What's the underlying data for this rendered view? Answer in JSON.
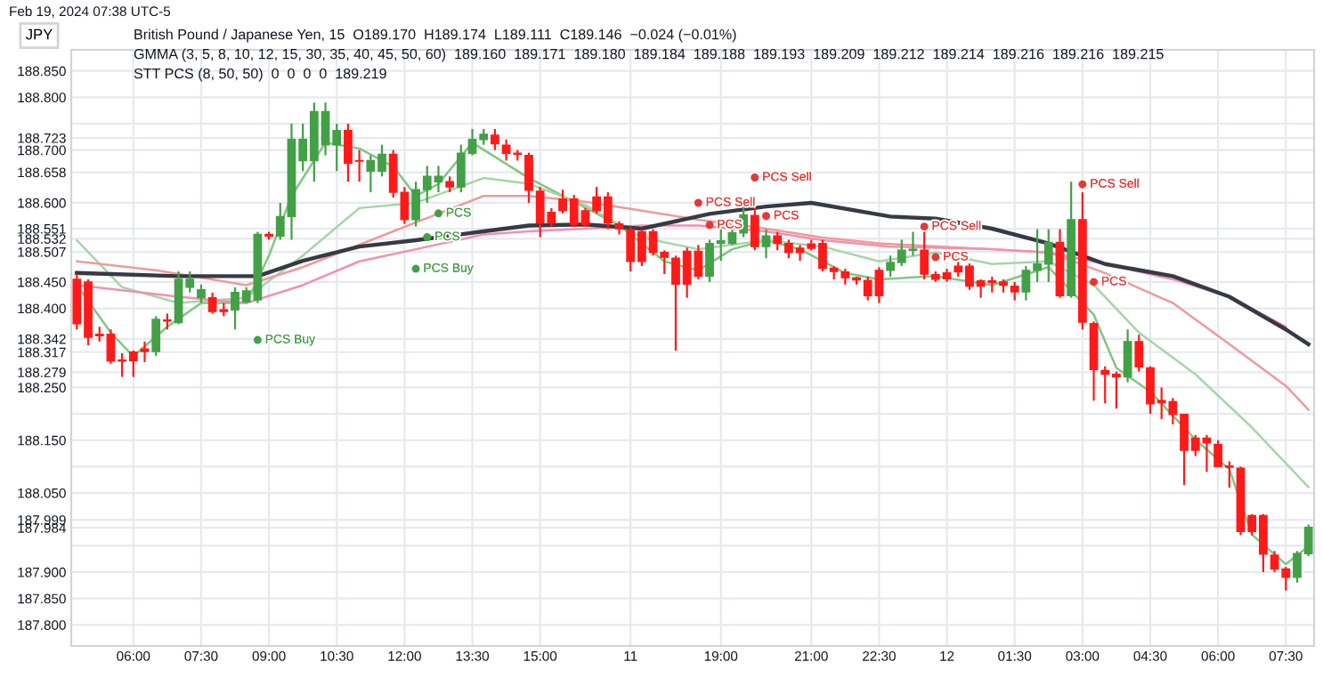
{
  "chart_data": {
    "type": "candlestick",
    "title": "British Pound / Japanese Yen, 15  O189.170  H189.174  L189.111  C189.146  −0.024 (−0.01%)",
    "subtitle": "GMMA (3, 5, 8, 10, 12, 15, 30, 35, 40, 45, 50, 60)  189.160  189.171  189.180  189.184  189.188  189.193  189.209  189.212  189.214  189.216  189.216  189.215",
    "ylabel": "JPY",
    "annotations": [
      "Feb 19, 2024 07:38 UTC-5",
      "STT PCS (8, 50, 50)  0  0  0  0  189.219"
    ],
    "categories": [
      null,
      null,
      null,
      null,
      null,
      "06:00",
      null,
      null,
      null,
      null,
      null,
      "07:30",
      null,
      null,
      null,
      null,
      null,
      "09:00",
      null,
      null,
      null,
      null,
      null,
      "10:30",
      null,
      null,
      null,
      null,
      null,
      "12:00",
      null,
      null,
      null,
      null,
      null,
      "13:30",
      null,
      null,
      null,
      null,
      null,
      "15:00",
      null,
      null,
      null,
      null,
      null,
      null,
      null,
      "11",
      null,
      null,
      null,
      null,
      null,
      null,
      null,
      "19:00",
      null,
      null,
      null,
      null,
      null,
      null,
      null,
      "21:00",
      null,
      null,
      null,
      null,
      null,
      "22:30",
      null,
      null,
      null,
      null,
      null,
      "12",
      null,
      null,
      null,
      null,
      null,
      "01:30",
      null,
      null,
      null,
      null,
      null,
      "03:00",
      null,
      null,
      null,
      null,
      null,
      "04:30",
      null,
      null,
      null,
      null,
      null,
      "06:00",
      null,
      null,
      null,
      null,
      null,
      "07:30",
      null,
      null
    ],
    "ohlc": [
      [
        188.455,
        188.465,
        188.36,
        188.371
      ],
      [
        188.45,
        188.455,
        188.33,
        188.345
      ],
      [
        188.351,
        188.365,
        188.337,
        188.348
      ],
      [
        188.351,
        188.36,
        188.295,
        188.3
      ],
      [
        188.302,
        188.315,
        188.27,
        188.3
      ],
      [
        188.317,
        188.32,
        188.27,
        188.301
      ],
      [
        188.323,
        188.337,
        188.298,
        188.318
      ],
      [
        188.318,
        188.385,
        188.31,
        188.379
      ],
      [
        188.378,
        188.39,
        188.36,
        188.376
      ],
      [
        188.373,
        188.47,
        188.37,
        188.455
      ],
      [
        188.44,
        188.47,
        188.43,
        188.455
      ],
      [
        188.42,
        188.445,
        188.41,
        188.435
      ],
      [
        188.42,
        188.43,
        188.39,
        188.394
      ],
      [
        188.397,
        188.41,
        188.385,
        188.394
      ],
      [
        188.397,
        188.44,
        188.36,
        188.43
      ],
      [
        188.412,
        188.44,
        188.41,
        188.433
      ],
      [
        188.416,
        188.545,
        188.41,
        188.54
      ],
      [
        188.54,
        188.545,
        188.53,
        188.537
      ],
      [
        188.537,
        188.6,
        188.53,
        188.574
      ],
      [
        188.574,
        188.75,
        188.53,
        188.72
      ],
      [
        188.68,
        188.75,
        188.66,
        188.72
      ],
      [
        188.68,
        188.79,
        188.64,
        188.773
      ],
      [
        188.71,
        188.79,
        188.69,
        188.773
      ],
      [
        188.71,
        188.75,
        188.66,
        188.737
      ],
      [
        188.737,
        188.75,
        188.64,
        188.675
      ],
      [
        188.68,
        188.7,
        188.64,
        188.679
      ],
      [
        188.66,
        188.69,
        188.62,
        188.68
      ],
      [
        188.66,
        188.71,
        188.65,
        188.692
      ],
      [
        188.692,
        188.7,
        188.61,
        188.62
      ],
      [
        188.62,
        188.63,
        188.56,
        188.568
      ],
      [
        188.568,
        188.64,
        188.555,
        188.625
      ],
      [
        188.625,
        188.67,
        188.6,
        188.65
      ],
      [
        188.64,
        188.67,
        188.62,
        188.65
      ],
      [
        188.64,
        188.65,
        188.62,
        188.63
      ],
      [
        188.63,
        188.71,
        188.62,
        188.694
      ],
      [
        188.694,
        188.74,
        188.69,
        188.72
      ],
      [
        188.72,
        188.74,
        188.71,
        188.73
      ],
      [
        188.728,
        188.74,
        188.7,
        188.712
      ],
      [
        188.709,
        188.72,
        188.68,
        188.694
      ],
      [
        188.694,
        188.7,
        188.68,
        188.692
      ],
      [
        188.69,
        188.695,
        188.6,
        188.624
      ],
      [
        188.622,
        188.63,
        188.535,
        188.562
      ],
      [
        188.582,
        188.59,
        188.555,
        188.562
      ],
      [
        188.607,
        188.625,
        188.58,
        188.585
      ],
      [
        188.607,
        188.615,
        188.555,
        188.559
      ],
      [
        188.585,
        188.59,
        188.555,
        188.559
      ],
      [
        188.611,
        188.63,
        188.58,
        188.585
      ],
      [
        188.611,
        188.62,
        188.55,
        188.562
      ],
      [
        188.56,
        188.565,
        188.54,
        188.551
      ],
      [
        188.549,
        188.555,
        188.47,
        188.489
      ],
      [
        188.545,
        188.55,
        188.48,
        188.489
      ],
      [
        188.545,
        188.55,
        188.5,
        188.506
      ],
      [
        188.506,
        188.51,
        188.465,
        188.497
      ],
      [
        188.495,
        188.5,
        188.32,
        188.446
      ],
      [
        188.508,
        188.515,
        188.42,
        188.446
      ],
      [
        188.508,
        188.52,
        188.455,
        188.461
      ],
      [
        188.461,
        188.53,
        188.45,
        188.523
      ],
      [
        188.523,
        188.55,
        188.49,
        188.528
      ],
      [
        188.523,
        188.56,
        188.52,
        188.543
      ],
      [
        188.543,
        188.6,
        188.535,
        188.577
      ],
      [
        188.576,
        188.6,
        188.51,
        188.517
      ],
      [
        188.517,
        188.55,
        188.495,
        188.537
      ],
      [
        188.537,
        188.545,
        188.51,
        188.523
      ],
      [
        188.523,
        188.53,
        188.495,
        188.506
      ],
      [
        188.514,
        188.52,
        188.49,
        188.506
      ],
      [
        188.522,
        188.53,
        188.51,
        188.514
      ],
      [
        188.523,
        188.53,
        188.47,
        188.476
      ],
      [
        188.476,
        188.48,
        188.455,
        188.47
      ],
      [
        188.469,
        188.475,
        188.445,
        188.458
      ],
      [
        188.458,
        188.46,
        188.445,
        188.454
      ],
      [
        188.453,
        188.46,
        188.415,
        188.424
      ],
      [
        188.472,
        188.478,
        188.41,
        188.424
      ],
      [
        188.472,
        188.5,
        188.46,
        188.487
      ],
      [
        188.487,
        188.53,
        188.48,
        188.51
      ],
      [
        188.51,
        188.545,
        188.5,
        188.512
      ],
      [
        188.51,
        188.545,
        188.455,
        188.465
      ],
      [
        188.464,
        188.47,
        188.45,
        188.455
      ],
      [
        188.467,
        188.475,
        188.45,
        188.456
      ],
      [
        188.48,
        188.49,
        188.46,
        188.469
      ],
      [
        188.48,
        188.485,
        188.435,
        188.442
      ],
      [
        188.452,
        188.455,
        188.42,
        188.442
      ],
      [
        188.452,
        188.46,
        188.43,
        188.449
      ],
      [
        188.45,
        188.455,
        188.43,
        188.444
      ],
      [
        188.442,
        188.45,
        188.415,
        188.431
      ],
      [
        188.431,
        188.48,
        188.415,
        188.472
      ],
      [
        188.472,
        188.55,
        188.45,
        188.484
      ],
      [
        188.484,
        188.55,
        188.45,
        188.525
      ],
      [
        188.525,
        188.55,
        188.42,
        188.424
      ],
      [
        188.424,
        188.64,
        188.42,
        188.568
      ],
      [
        188.568,
        188.62,
        188.36,
        188.374
      ],
      [
        188.371,
        188.375,
        188.225,
        188.284
      ],
      [
        188.282,
        188.29,
        188.22,
        188.275
      ],
      [
        188.275,
        188.28,
        188.21,
        188.27
      ],
      [
        188.27,
        188.36,
        188.26,
        188.337
      ],
      [
        188.337,
        188.35,
        188.28,
        188.289
      ],
      [
        188.287,
        188.29,
        188.2,
        188.219
      ],
      [
        188.225,
        188.25,
        188.19,
        188.221
      ],
      [
        188.223,
        188.23,
        188.18,
        188.199
      ],
      [
        188.199,
        188.2,
        188.065,
        188.131
      ],
      [
        188.154,
        188.16,
        188.12,
        188.131
      ],
      [
        188.154,
        188.16,
        188.09,
        188.145
      ],
      [
        188.142,
        188.15,
        188.1,
        188.1
      ],
      [
        188.101,
        188.11,
        188.06,
        188.099
      ],
      [
        188.097,
        188.1,
        187.97,
        187.977
      ],
      [
        188.007,
        188.01,
        187.97,
        187.977
      ],
      [
        188.007,
        188.01,
        187.9,
        187.934
      ],
      [
        187.932,
        187.94,
        187.9,
        187.906
      ],
      [
        187.906,
        187.91,
        187.865,
        187.89
      ],
      [
        187.89,
        187.94,
        187.88,
        187.935
      ],
      [
        187.935,
        187.99,
        187.93,
        187.985
      ]
    ],
    "series": [
      {
        "type": "line",
        "color": "#81c784",
        "values": [
          188.444,
          null,
          null,
          188.354,
          null,
          188.309,
          null,
          null,
          188.365,
          null,
          null,
          188.41,
          null,
          null,
          null,
          188.41,
          null,
          188.5,
          null,
          188.613,
          null,
          null,
          188.714,
          null,
          null,
          188.703,
          null,
          null,
          188.669,
          null,
          188.613,
          null,
          188.636,
          null,
          null,
          188.714,
          null,
          null,
          null,
          null,
          188.647,
          null,
          null,
          null,
          null,
          188.591,
          null,
          null,
          188.557,
          null,
          null,
          null,
          188.489,
          null,
          null,
          188.472,
          null,
          null,
          188.512,
          null,
          null,
          188.529,
          null,
          null,
          188.512,
          null,
          null,
          null,
          188.467,
          null,
          null,
          188.455,
          null,
          null,
          null,
          null,
          188.461,
          null,
          null,
          null,
          null,
          188.444,
          null,
          null,
          null,
          null,
          188.478,
          null,
          null,
          null,
          188.388,
          null,
          188.287,
          null,
          null,
          188.242,
          null,
          null,
          null,
          188.151,
          null,
          null,
          188.095,
          null,
          187.971,
          null,
          null,
          187.915,
          null,
          187.949
        ]
      },
      {
        "type": "line",
        "color": "#a5d6a7",
        "values": [
          188.529,
          null,
          null,
          null,
          188.44,
          null,
          null,
          null,
          null,
          188.41,
          null,
          null,
          null,
          null,
          null,
          188.42,
          null,
          null,
          null,
          null,
          188.5,
          null,
          null,
          null,
          null,
          188.59,
          null,
          null,
          null,
          null,
          188.6,
          null,
          null,
          null,
          null,
          null,
          188.647,
          null,
          null,
          null,
          188.636,
          null,
          null,
          null,
          null,
          188.596,
          null,
          null,
          null,
          null,
          188.534,
          null,
          null,
          null,
          null,
          188.512,
          null,
          null,
          null,
          null,
          null,
          188.529,
          null,
          null,
          null,
          null,
          188.517,
          null,
          null,
          null,
          null,
          188.489,
          null,
          null,
          null,
          null,
          188.506,
          null,
          null,
          null,
          null,
          188.484,
          null,
          null,
          null,
          null,
          188.489,
          null,
          null,
          null,
          188.444,
          null,
          null,
          null,
          188.354,
          null,
          null,
          null,
          null,
          188.275,
          null,
          null,
          null,
          null,
          188.174,
          null,
          null,
          null,
          null,
          188.061
        ]
      },
      {
        "type": "line",
        "color": "#ef9a9a",
        "values": [
          188.489,
          null,
          null,
          null,
          null,
          null,
          null,
          188.472,
          null,
          null,
          null,
          null,
          null,
          null,
          null,
          188.444,
          null,
          null,
          null,
          null,
          188.478,
          null,
          null,
          null,
          null,
          null,
          null,
          null,
          188.546,
          null,
          null,
          null,
          null,
          null,
          null,
          null,
          188.613,
          null,
          null,
          null,
          188.613,
          null,
          null,
          null,
          null,
          188.602,
          null,
          null,
          null,
          null,
          188.585,
          null,
          null,
          null,
          null,
          188.568,
          null,
          null,
          null,
          null,
          null,
          188.551,
          null,
          null,
          null,
          null,
          188.534,
          null,
          null,
          null,
          null,
          188.523,
          null,
          null,
          null,
          null,
          null,
          null,
          null,
          null,
          null,
          188.512,
          null,
          null,
          null,
          null,
          188.506,
          null,
          null,
          null,
          null,
          188.467,
          null,
          null,
          null,
          null,
          null,
          188.41,
          null,
          null,
          null,
          null,
          188.332,
          null,
          null,
          null,
          null,
          188.253,
          null,
          188.208
        ]
      },
      {
        "type": "line",
        "color": "#f48fb1",
        "values": [
          188.444,
          null,
          null,
          null,
          null,
          null,
          null,
          null,
          null,
          188.422,
          null,
          null,
          null,
          null,
          null,
          188.41,
          null,
          null,
          null,
          null,
          188.444,
          null,
          null,
          null,
          null,
          188.489,
          null,
          null,
          null,
          null,
          188.512,
          null,
          null,
          null,
          null,
          null,
          188.54,
          null,
          null,
          null,
          188.546,
          null,
          null,
          null,
          null,
          188.551,
          null,
          null,
          null,
          null,
          188.557,
          null,
          null,
          null,
          null,
          188.557,
          null,
          null,
          null,
          null,
          null,
          188.546,
          null,
          null,
          null,
          null,
          188.529,
          null,
          null,
          null,
          null,
          null,
          188.517,
          null,
          null,
          null,
          null,
          null,
          null,
          null,
          null,
          188.512,
          null,
          null,
          null,
          null,
          188.506,
          null,
          null,
          null,
          null,
          188.484,
          null,
          null,
          null,
          null,
          null,
          188.455,
          null,
          null,
          null,
          null,
          188.422,
          null,
          null,
          null,
          null,
          188.365,
          null,
          null
        ]
      },
      {
        "type": "line",
        "color": "#363a45",
        "values": [
          188.467,
          null,
          null,
          null,
          null,
          null,
          null,
          null,
          null,
          188.461,
          null,
          null,
          null,
          null,
          null,
          null,
          188.461,
          null,
          null,
          null,
          188.49,
          null,
          null,
          null,
          null,
          188.517,
          null,
          null,
          null,
          null,
          188.529,
          null,
          null,
          null,
          null,
          null,
          188.546,
          null,
          null,
          null,
          188.557,
          null,
          null,
          null,
          null,
          188.559,
          null,
          null,
          null,
          null,
          188.551,
          null,
          null,
          null,
          null,
          null,
          188.579,
          null,
          null,
          null,
          null,
          188.593,
          null,
          null,
          null,
          188.6,
          null,
          null,
          null,
          null,
          null,
          null,
          188.574,
          null,
          null,
          null,
          188.57,
          null,
          null,
          null,
          null,
          188.551,
          null,
          null,
          null,
          null,
          188.523,
          null,
          null,
          null,
          null,
          188.484,
          null,
          null,
          null,
          null,
          null,
          188.461,
          null,
          null,
          null,
          null,
          188.422,
          null,
          null,
          null,
          null,
          188.36,
          null,
          188.332
        ]
      },
      {
        "type": "scatter",
        "color": "#43a047",
        "marker": "circle",
        "values": [
          null,
          null,
          null,
          null,
          null,
          null,
          null,
          null,
          null,
          null,
          null,
          null,
          null,
          null,
          null,
          null,
          188.34,
          null,
          null,
          null,
          null,
          null,
          null,
          null,
          null,
          null,
          null,
          null,
          null,
          null,
          188.475,
          188.535,
          188.58,
          null,
          null,
          null,
          null,
          null,
          null,
          null,
          null,
          null,
          null,
          null,
          null,
          null,
          null,
          null,
          null,
          null,
          null,
          null,
          null,
          null,
          null,
          null,
          null,
          null,
          null,
          null,
          null,
          null,
          null,
          null,
          null,
          null,
          null,
          null,
          null,
          null,
          null,
          null,
          null,
          null,
          null,
          null,
          null,
          null,
          null,
          null,
          null,
          null,
          null,
          null,
          null,
          null,
          null,
          null,
          null,
          null,
          null,
          null,
          null,
          null,
          null,
          null,
          null,
          null,
          null,
          null,
          null,
          null,
          null,
          null,
          null,
          null,
          null,
          null,
          null,
          null
        ],
        "value_labels": [
          null,
          null,
          null,
          null,
          null,
          null,
          null,
          null,
          null,
          null,
          null,
          null,
          null,
          null,
          null,
          null,
          "PCS Buy",
          null,
          null,
          null,
          null,
          null,
          null,
          null,
          null,
          null,
          null,
          null,
          null,
          null,
          "PCS Buy",
          "PCS",
          "PCS",
          null,
          null,
          null,
          null,
          null,
          null,
          null,
          null,
          null,
          null,
          null,
          null,
          null,
          null,
          null,
          null,
          null,
          null,
          null,
          null,
          null,
          null,
          null,
          null,
          null,
          null,
          null,
          null,
          null,
          null,
          null,
          null,
          null,
          null,
          null,
          null,
          null,
          null,
          null,
          null,
          null,
          null,
          null,
          null,
          null,
          null,
          null,
          null,
          null,
          null,
          null,
          null,
          null,
          null,
          null,
          null,
          null,
          null,
          null,
          null,
          null,
          null,
          null,
          null,
          null,
          null,
          null,
          null,
          null,
          null,
          null,
          null,
          null,
          null,
          null,
          null,
          null
        ]
      },
      {
        "type": "scatter",
        "color": "#e53935",
        "marker": "circle",
        "values": [
          null,
          null,
          null,
          null,
          null,
          null,
          null,
          null,
          null,
          null,
          null,
          null,
          null,
          null,
          null,
          null,
          null,
          null,
          null,
          null,
          null,
          null,
          null,
          null,
          null,
          null,
          null,
          null,
          null,
          null,
          null,
          null,
          null,
          null,
          null,
          null,
          null,
          null,
          null,
          null,
          null,
          null,
          null,
          null,
          null,
          null,
          null,
          null,
          null,
          null,
          null,
          null,
          null,
          null,
          null,
          188.6,
          188.558,
          null,
          null,
          null,
          188.648,
          188.575,
          null,
          null,
          null,
          null,
          null,
          null,
          null,
          null,
          null,
          null,
          null,
          null,
          null,
          188.555,
          188.497,
          null,
          null,
          null,
          null,
          null,
          null,
          null,
          null,
          null,
          null,
          null,
          null,
          188.635,
          188.45,
          null,
          null,
          null,
          null,
          null,
          null,
          null,
          null,
          null,
          null,
          null,
          null,
          null,
          null,
          null,
          null,
          null,
          null,
          null
        ],
        "value_labels": [
          null,
          null,
          null,
          null,
          null,
          null,
          null,
          null,
          null,
          null,
          null,
          null,
          null,
          null,
          null,
          null,
          null,
          null,
          null,
          null,
          null,
          null,
          null,
          null,
          null,
          null,
          null,
          null,
          null,
          null,
          null,
          null,
          null,
          null,
          null,
          null,
          null,
          null,
          null,
          null,
          null,
          null,
          null,
          null,
          null,
          null,
          null,
          null,
          null,
          null,
          null,
          null,
          null,
          null,
          null,
          "PCS Sell",
          "PCS",
          null,
          null,
          null,
          "PCS Sell",
          "PCS",
          null,
          null,
          null,
          null,
          null,
          null,
          null,
          null,
          null,
          null,
          null,
          null,
          null,
          "PCS Sell",
          "PCS",
          null,
          null,
          null,
          null,
          null,
          null,
          null,
          null,
          null,
          null,
          null,
          null,
          "PCS Sell",
          "PCS",
          null,
          null,
          null,
          null,
          null,
          null,
          null,
          null,
          null,
          null,
          null,
          null,
          null,
          null,
          null,
          null,
          null,
          null,
          null
        ]
      }
    ],
    "ylim": [
      187.76,
      188.89
    ],
    "yticks": [
      {
        "value": 188.85,
        "label": "188.850"
      },
      {
        "value": 188.8,
        "label": "188.800"
      },
      {
        "value": 188.75,
        "label": null
      },
      {
        "value": 188.723,
        "label": "188.723"
      },
      {
        "value": 188.7,
        "label": "188.700"
      },
      {
        "value": 188.658,
        "label": "188.658"
      },
      {
        "value": 188.6,
        "label": "188.600"
      },
      {
        "value": 188.551,
        "label": "188.551"
      },
      {
        "value": 188.532,
        "label": "188.532"
      },
      {
        "value": 188.507,
        "label": "188.507"
      },
      {
        "value": 188.45,
        "label": "188.450"
      },
      {
        "value": 188.4,
        "label": "188.400"
      },
      {
        "value": 188.342,
        "label": "188.342"
      },
      {
        "value": 188.317,
        "label": "188.317"
      },
      {
        "value": 188.279,
        "label": "188.279"
      },
      {
        "value": 188.25,
        "label": "188.250"
      },
      {
        "value": 188.2,
        "label": null
      },
      {
        "value": 188.15,
        "label": "188.150"
      },
      {
        "value": 188.1,
        "label": null
      },
      {
        "value": 188.05,
        "label": "188.050"
      },
      {
        "value": 187.999,
        "label": "187.999"
      },
      {
        "value": 187.984,
        "label": "187.984"
      },
      {
        "value": 187.95,
        "label": null
      },
      {
        "value": 187.9,
        "label": "187.900"
      },
      {
        "value": 187.85,
        "label": "187.850"
      },
      {
        "value": 187.8,
        "label": "187.800"
      }
    ],
    "grid": true
  }
}
